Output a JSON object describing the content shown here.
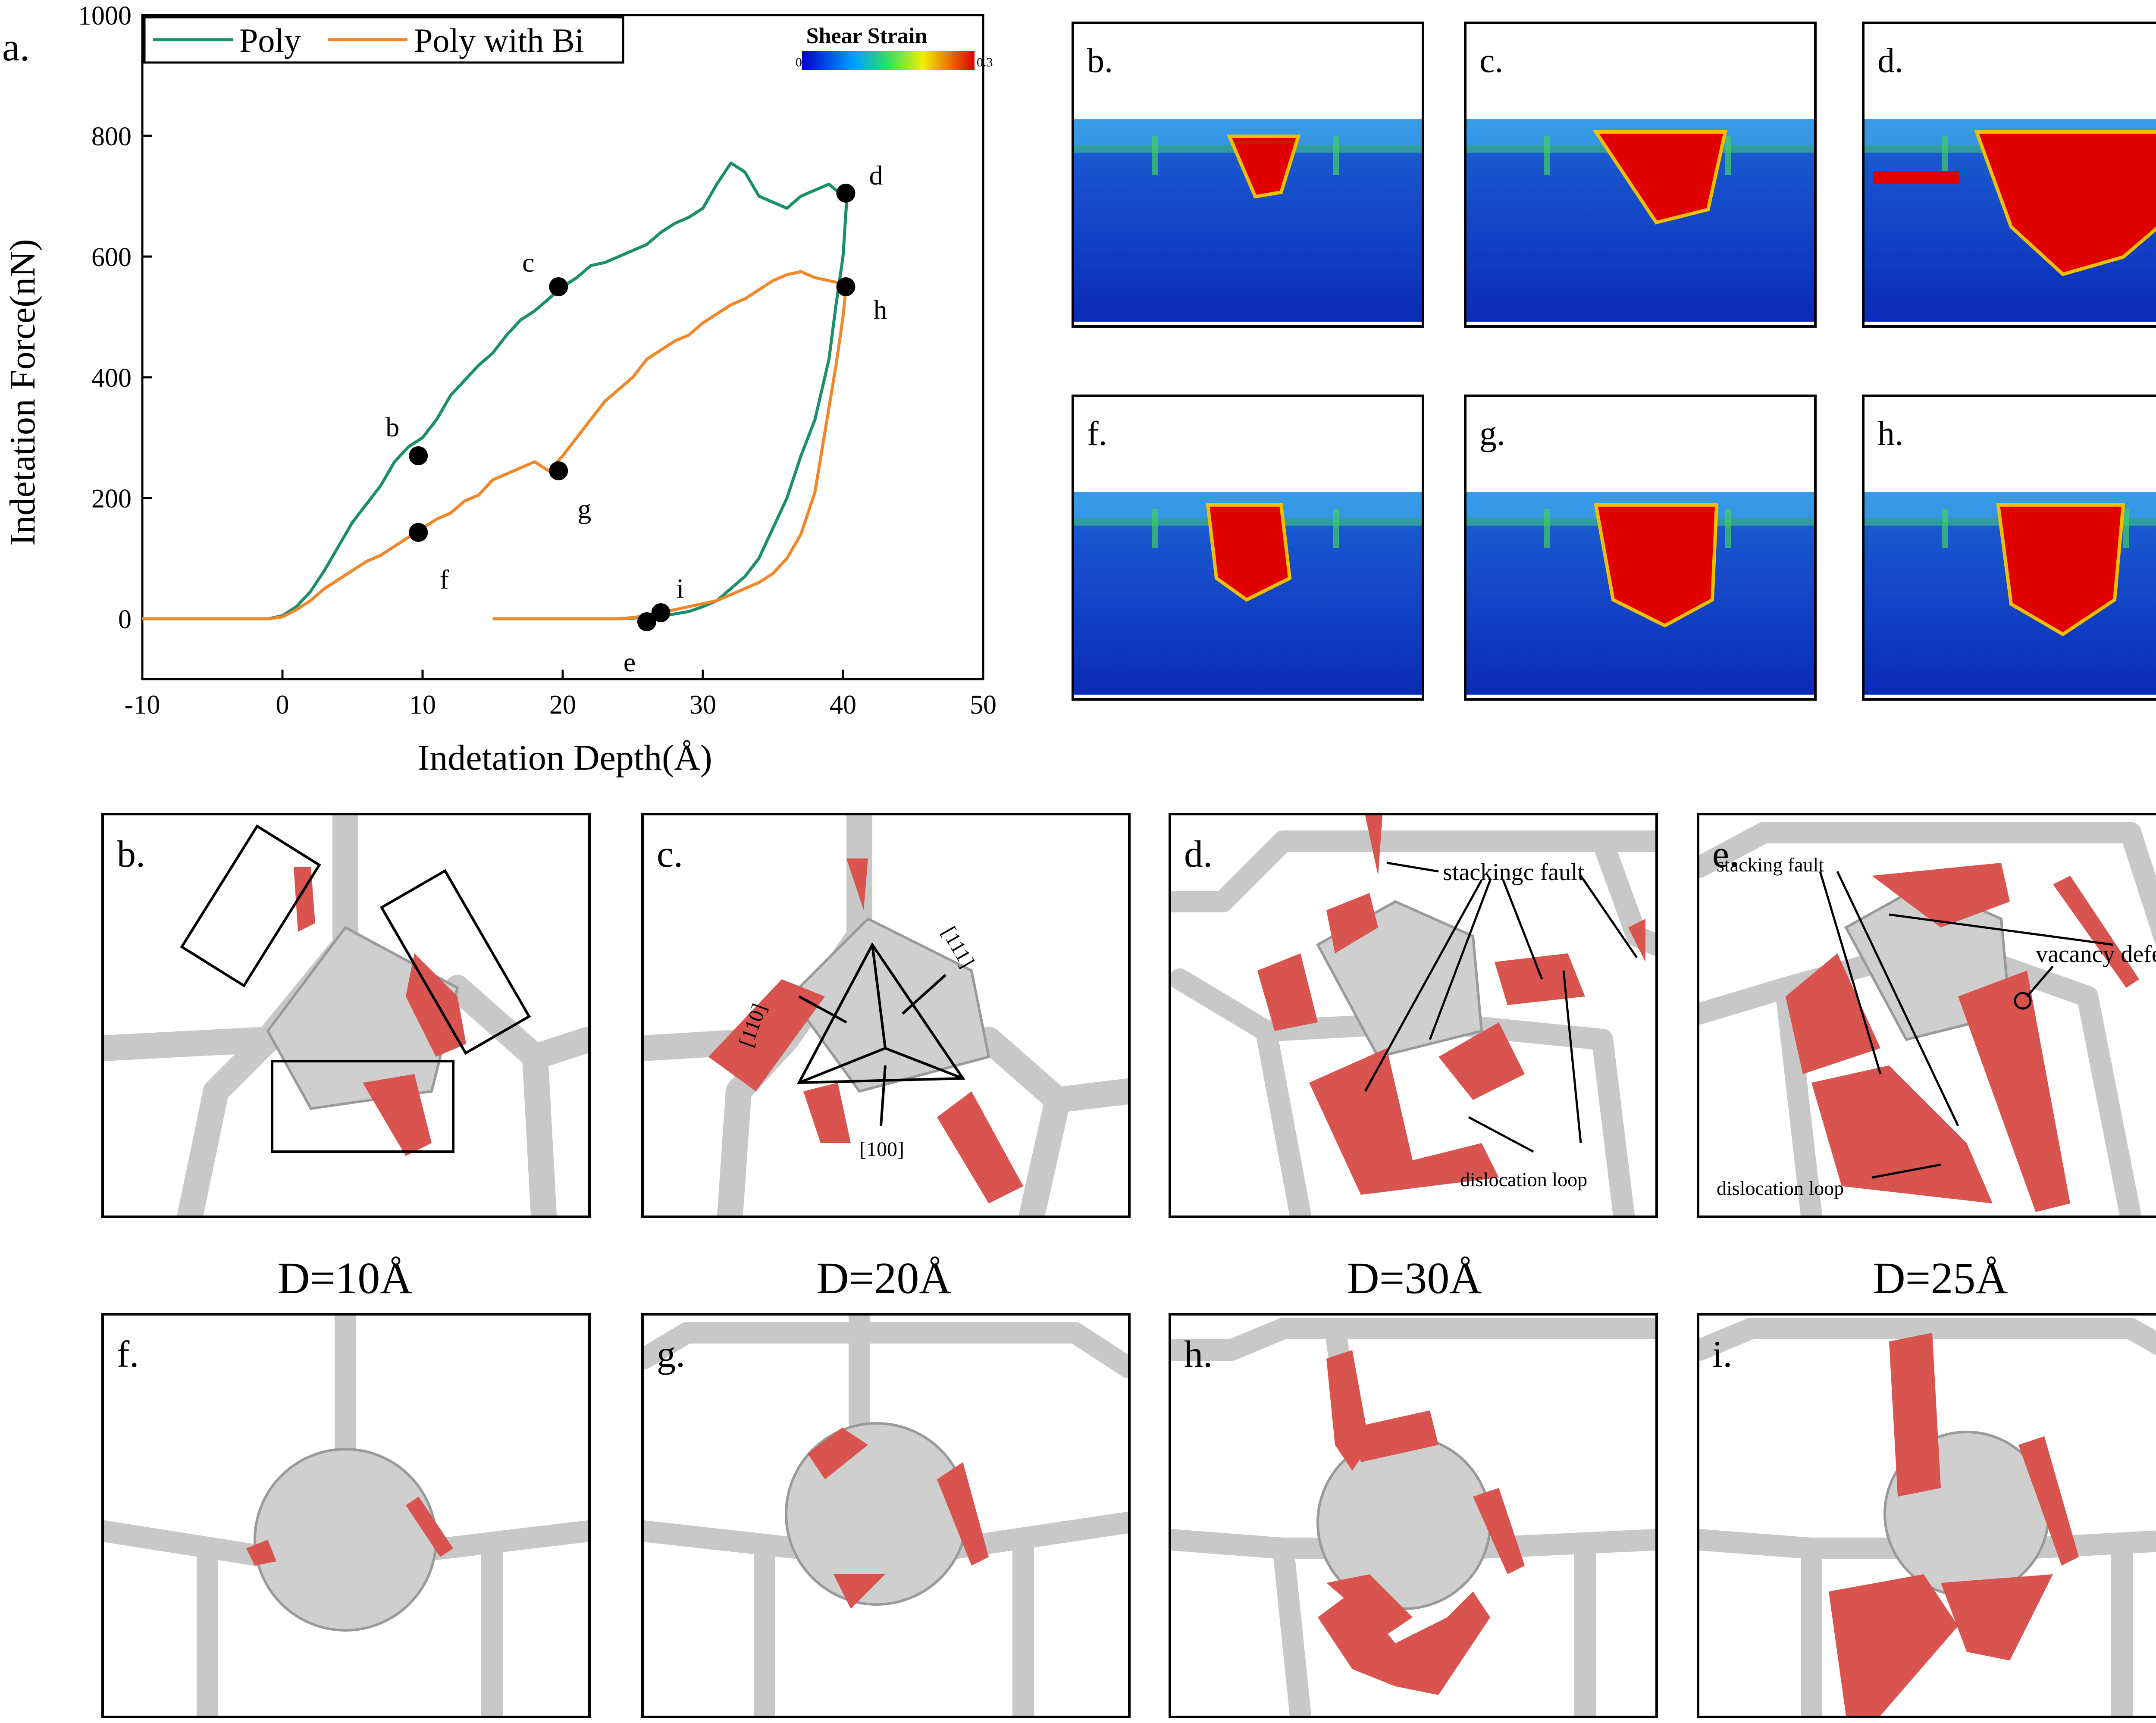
{
  "chart_data": {
    "type": "line",
    "panel_label": "a.",
    "xlabel": "Indetation Depth(Å)",
    "ylabel": "Indetation Force(nN)",
    "xlim": [
      -10,
      50
    ],
    "ylim": [
      -100,
      1000
    ],
    "xticks": [
      -10,
      0,
      10,
      20,
      30,
      40,
      50
    ],
    "yticks": [
      0,
      200,
      400,
      600,
      800,
      1000
    ],
    "legend_position": "top-left",
    "colorbar": {
      "title": "Shear Strain",
      "min": "0",
      "max": "0.3"
    },
    "series": [
      {
        "name": "Poly",
        "color": "#1a8f6a",
        "x": [
          -10,
          -1,
          0,
          1,
          2,
          3,
          4,
          5,
          6,
          7,
          8,
          9,
          10,
          11,
          12,
          13,
          14,
          15,
          16,
          17,
          18,
          19,
          20,
          21,
          22,
          23,
          24,
          25,
          26,
          27,
          28,
          29,
          30,
          31,
          32,
          33,
          34,
          35,
          36,
          37,
          38,
          39,
          40,
          40.3,
          40,
          39.5,
          39,
          38,
          37,
          36,
          35,
          34,
          33,
          32,
          31,
          30,
          29,
          28,
          27,
          26,
          25,
          24,
          23,
          22
        ],
        "y": [
          0,
          0,
          5,
          20,
          45,
          80,
          120,
          160,
          190,
          220,
          260,
          285,
          300,
          330,
          370,
          395,
          420,
          440,
          470,
          495,
          510,
          530,
          550,
          565,
          585,
          590,
          600,
          610,
          620,
          640,
          655,
          665,
          680,
          720,
          755,
          740,
          700,
          690,
          680,
          700,
          710,
          720,
          700,
          705,
          600,
          520,
          430,
          330,
          270,
          200,
          150,
          100,
          70,
          50,
          30,
          20,
          12,
          8,
          5,
          3,
          1,
          0,
          0,
          0
        ]
      },
      {
        "name": "Poly with Bi",
        "color": "#f0872b",
        "x": [
          -10,
          -1,
          0,
          1,
          2,
          3,
          4,
          5,
          6,
          7,
          8,
          9,
          10,
          11,
          12,
          13,
          14,
          15,
          16,
          17,
          18,
          19,
          20,
          21,
          22,
          23,
          24,
          25,
          26,
          27,
          28,
          29,
          30,
          31,
          32,
          33,
          34,
          35,
          36,
          37,
          38,
          39,
          40,
          40.2,
          40,
          39.5,
          39,
          38.5,
          38,
          37,
          36,
          35,
          34,
          33,
          32,
          31,
          30,
          29,
          28,
          27,
          26,
          25,
          24,
          22,
          20,
          18,
          15
        ],
        "y": [
          0,
          0,
          3,
          15,
          30,
          50,
          65,
          80,
          95,
          105,
          120,
          135,
          150,
          165,
          175,
          195,
          205,
          230,
          240,
          250,
          260,
          245,
          270,
          300,
          330,
          360,
          380,
          400,
          430,
          445,
          460,
          470,
          490,
          505,
          520,
          530,
          545,
          560,
          570,
          575,
          565,
          560,
          555,
          545,
          500,
          420,
          350,
          280,
          210,
          140,
          100,
          75,
          60,
          50,
          40,
          30,
          25,
          20,
          15,
          10,
          5,
          2,
          0,
          0,
          0,
          0,
          0
        ]
      }
    ],
    "markers": [
      {
        "label": "b",
        "x": 9.7,
        "y": 270
      },
      {
        "label": "c",
        "x": 19.7,
        "y": 550
      },
      {
        "label": "d",
        "x": 40.2,
        "y": 705
      },
      {
        "label": "e",
        "x": 26,
        "y": -5
      },
      {
        "label": "f",
        "x": 9.7,
        "y": 143
      },
      {
        "label": "g",
        "x": 19.7,
        "y": 245
      },
      {
        "label": "h",
        "x": 40.2,
        "y": 550
      },
      {
        "label": "i",
        "x": 27,
        "y": 10
      }
    ]
  },
  "strain_panels": [
    "b.",
    "c.",
    "d.",
    "f.",
    "g.",
    "h."
  ],
  "structure_top": {
    "labels": [
      "b.",
      "c.",
      "d.",
      "e."
    ],
    "c_annotations": [
      "[110]",
      "[111]",
      "[100]"
    ],
    "d_annotations": {
      "stacking": "stackingc fault",
      "loop": "dislocation loop"
    },
    "e_annotations": {
      "stacking": "stacking fault",
      "vacancy": "vacancy defect",
      "loop": "dislocation loop"
    }
  },
  "depth_labels": [
    "D=10Å",
    "D=20Å",
    "D=30Å",
    "D=25Å"
  ],
  "structure_bottom": {
    "labels": [
      "f.",
      "g.",
      "h.",
      "i."
    ]
  }
}
